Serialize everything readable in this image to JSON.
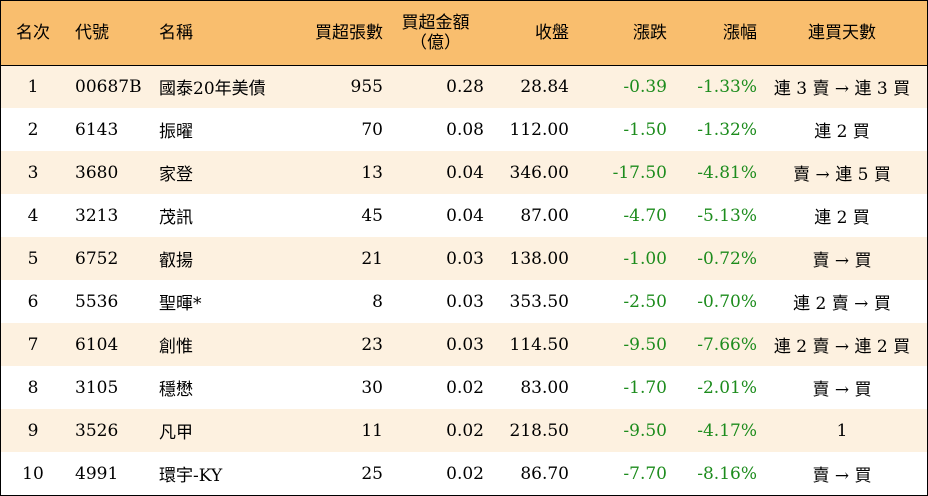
{
  "headers": {
    "rank": "名次",
    "code": "代號",
    "name": "名稱",
    "net_buy_lots": "買超張數",
    "net_buy_amount_line1": "買超金額",
    "net_buy_amount_line2": "（億）",
    "close": "收盤",
    "change": "漲跌",
    "change_pct": "漲幅",
    "consecutive_days": "連買天數"
  },
  "colors": {
    "header_bg": "#f9be6e",
    "odd_row_bg": "#fdf1e0",
    "even_row_bg": "#ffffff",
    "negative_text": "#1d8c1d"
  },
  "rows": [
    {
      "rank": "1",
      "code": "00687B",
      "name": "國泰20年美債",
      "lots": "955",
      "amount": "0.28",
      "close": "28.84",
      "change": "-0.39",
      "pct": "-1.33%",
      "days": "連 3 賣 → 連 3 買"
    },
    {
      "rank": "2",
      "code": "6143",
      "name": "振曜",
      "lots": "70",
      "amount": "0.08",
      "close": "112.00",
      "change": "-1.50",
      "pct": "-1.32%",
      "days": "連 2 買"
    },
    {
      "rank": "3",
      "code": "3680",
      "name": "家登",
      "lots": "13",
      "amount": "0.04",
      "close": "346.00",
      "change": "-17.50",
      "pct": "-4.81%",
      "days": "賣 → 連 5 買"
    },
    {
      "rank": "4",
      "code": "3213",
      "name": "茂訊",
      "lots": "45",
      "amount": "0.04",
      "close": "87.00",
      "change": "-4.70",
      "pct": "-5.13%",
      "days": "連 2 買"
    },
    {
      "rank": "5",
      "code": "6752",
      "name": "叡揚",
      "lots": "21",
      "amount": "0.03",
      "close": "138.00",
      "change": "-1.00",
      "pct": "-0.72%",
      "days": "賣 → 買"
    },
    {
      "rank": "6",
      "code": "5536",
      "name": "聖暉*",
      "lots": "8",
      "amount": "0.03",
      "close": "353.50",
      "change": "-2.50",
      "pct": "-0.70%",
      "days": "連 2 賣 → 買"
    },
    {
      "rank": "7",
      "code": "6104",
      "name": "創惟",
      "lots": "23",
      "amount": "0.03",
      "close": "114.50",
      "change": "-9.50",
      "pct": "-7.66%",
      "days": "連 2 賣 → 連 2 買"
    },
    {
      "rank": "8",
      "code": "3105",
      "name": "穩懋",
      "lots": "30",
      "amount": "0.02",
      "close": "83.00",
      "change": "-1.70",
      "pct": "-2.01%",
      "days": "賣 → 買"
    },
    {
      "rank": "9",
      "code": "3526",
      "name": "凡甲",
      "lots": "11",
      "amount": "0.02",
      "close": "218.50",
      "change": "-9.50",
      "pct": "-4.17%",
      "days": "1"
    },
    {
      "rank": "10",
      "code": "4991",
      "name": "環宇-KY",
      "lots": "25",
      "amount": "0.02",
      "close": "86.70",
      "change": "-7.70",
      "pct": "-8.16%",
      "days": "賣 → 買"
    }
  ]
}
